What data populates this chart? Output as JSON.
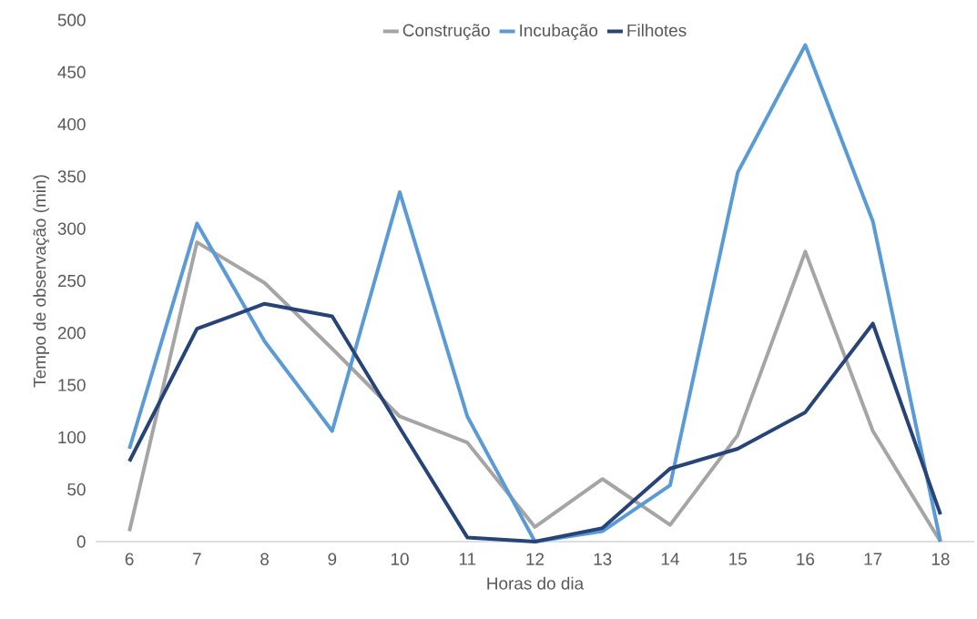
{
  "chart_data": {
    "type": "line",
    "xlabel": "Horas do dia",
    "ylabel": "Tempo de observação (min)",
    "x": [
      6,
      7,
      8,
      9,
      10,
      11,
      12,
      13,
      14,
      15,
      16,
      17,
      18
    ],
    "xlim": [
      5.5,
      18.5
    ],
    "xticks": [
      6,
      7,
      8,
      9,
      10,
      11,
      12,
      13,
      14,
      15,
      16,
      17,
      18
    ],
    "ylim": [
      0,
      500
    ],
    "yticks": [
      0,
      50,
      100,
      150,
      200,
      250,
      300,
      350,
      400,
      450,
      500
    ],
    "legend": "top",
    "series": [
      {
        "name": "Construção",
        "color": "#a5a5a5",
        "values": [
          10,
          287,
          248,
          185,
          120,
          95,
          14,
          60,
          16,
          102,
          278,
          106,
          0
        ]
      },
      {
        "name": "Incubação",
        "color": "#5b9bd5",
        "values": [
          89,
          305,
          192,
          106,
          335,
          120,
          0,
          10,
          54,
          354,
          476,
          307,
          0
        ]
      },
      {
        "name": "Filhotes",
        "color": "#264478",
        "values": [
          77,
          204,
          228,
          216,
          109,
          4,
          0,
          13,
          70,
          89,
          124,
          209,
          26
        ]
      }
    ]
  }
}
